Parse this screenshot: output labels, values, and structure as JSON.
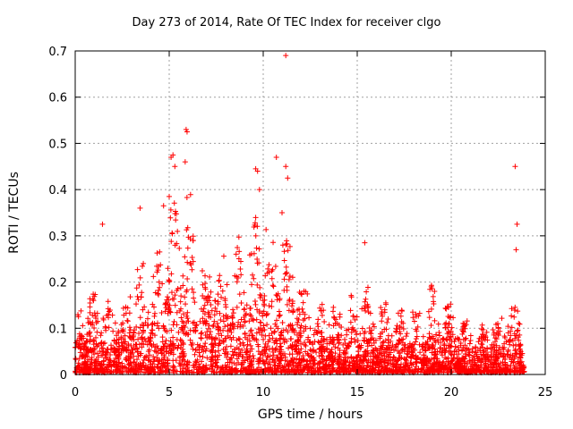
{
  "chart_data": {
    "type": "scatter",
    "title": "Day 273 of 2014, Rate Of TEC Index for receiver clgo",
    "xlabel": "GPS time / hours",
    "ylabel": "ROTI / TECUs",
    "xlim": [
      0,
      25
    ],
    "ylim": [
      0,
      0.7
    ],
    "xticks": [
      0,
      5,
      10,
      15,
      20,
      25
    ],
    "yticks": [
      0,
      0.1,
      0.2,
      0.3,
      0.4,
      0.5,
      0.6,
      0.7
    ],
    "grid": true,
    "marker": "+",
    "color": "#ff0000",
    "envelope": {
      "x": [
        0,
        0.5,
        1,
        1.5,
        2,
        2.5,
        3,
        3.5,
        4,
        4.5,
        5,
        5.5,
        6,
        6.5,
        7,
        7.5,
        8,
        8.5,
        9,
        9.5,
        10,
        10.5,
        11,
        11.5,
        12,
        12.5,
        13,
        13.5,
        14,
        14.5,
        15,
        15.5,
        16,
        16.5,
        17,
        17.5,
        18,
        18.5,
        19,
        19.5,
        20,
        20.5,
        21,
        21.5,
        22,
        22.5,
        23,
        23.5,
        23.9
      ],
      "y": [
        0.14,
        0.18,
        0.19,
        0.17,
        0.15,
        0.16,
        0.2,
        0.28,
        0.22,
        0.3,
        0.38,
        0.4,
        0.42,
        0.3,
        0.22,
        0.28,
        0.26,
        0.3,
        0.32,
        0.34,
        0.38,
        0.3,
        0.34,
        0.3,
        0.2,
        0.18,
        0.17,
        0.16,
        0.16,
        0.18,
        0.2,
        0.19,
        0.17,
        0.16,
        0.15,
        0.14,
        0.16,
        0.14,
        0.2,
        0.16,
        0.15,
        0.12,
        0.13,
        0.11,
        0.11,
        0.12,
        0.16,
        0.18,
        0.12
      ]
    },
    "outliers": [
      {
        "x": 11.2,
        "y": 0.69
      },
      {
        "x": 5.9,
        "y": 0.53
      },
      {
        "x": 5.95,
        "y": 0.525
      },
      {
        "x": 5.1,
        "y": 0.47
      },
      {
        "x": 5.2,
        "y": 0.475
      },
      {
        "x": 5.3,
        "y": 0.45
      },
      {
        "x": 5.85,
        "y": 0.46
      },
      {
        "x": 10.7,
        "y": 0.47
      },
      {
        "x": 11.2,
        "y": 0.45
      },
      {
        "x": 9.6,
        "y": 0.445
      },
      {
        "x": 9.7,
        "y": 0.44
      },
      {
        "x": 23.4,
        "y": 0.45
      },
      {
        "x": 11.3,
        "y": 0.425
      },
      {
        "x": 9.8,
        "y": 0.4
      },
      {
        "x": 5.0,
        "y": 0.385
      },
      {
        "x": 3.45,
        "y": 0.36
      },
      {
        "x": 4.7,
        "y": 0.365
      },
      {
        "x": 11.0,
        "y": 0.35
      },
      {
        "x": 1.45,
        "y": 0.325
      },
      {
        "x": 23.5,
        "y": 0.325
      },
      {
        "x": 15.4,
        "y": 0.285
      },
      {
        "x": 23.45,
        "y": 0.27
      }
    ]
  }
}
